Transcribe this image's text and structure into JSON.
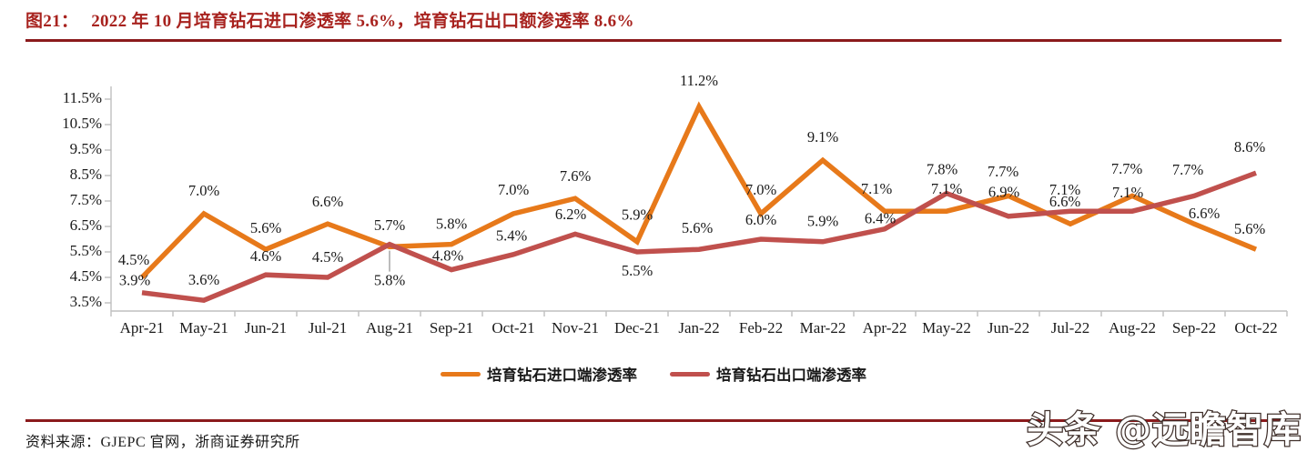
{
  "figure": {
    "label": "图21：",
    "title": "2022 年 10 月培育钻石进口渗透率 5.6%，培育钻石出口额渗透率 8.6%"
  },
  "chart_data": {
    "type": "line",
    "categories": [
      "Apr-21",
      "May-21",
      "Jun-21",
      "Jul-21",
      "Aug-21",
      "Sep-21",
      "Oct-21",
      "Nov-21",
      "Dec-21",
      "Jan-22",
      "Feb-22",
      "Mar-22",
      "Apr-22",
      "May-22",
      "Jun-22",
      "Jul-22",
      "Aug-22",
      "Sep-22",
      "Oct-22"
    ],
    "series": [
      {
        "name": "培育钻石进口端渗透率",
        "color": "#E7791A",
        "values": [
          4.5,
          7.0,
          5.6,
          6.6,
          5.7,
          5.8,
          7.0,
          7.6,
          5.9,
          11.2,
          7.0,
          9.1,
          7.1,
          7.1,
          7.7,
          6.6,
          7.7,
          6.6,
          5.6
        ]
      },
      {
        "name": "培育钻石出口端渗透率",
        "color": "#C0504D",
        "values": [
          3.9,
          3.6,
          4.6,
          4.5,
          5.8,
          4.8,
          5.4,
          6.2,
          5.5,
          5.6,
          6.0,
          5.9,
          6.4,
          7.8,
          6.9,
          7.1,
          7.1,
          7.7,
          8.6
        ]
      }
    ],
    "ylim": [
      3.5,
      11.5
    ],
    "ytick_step": 1.0,
    "ytick_labels": [
      "3.5%",
      "4.5%",
      "5.5%",
      "6.5%",
      "7.5%",
      "8.5%",
      "9.5%",
      "10.5%",
      "11.5%"
    ],
    "grid": false,
    "legend_position": "bottom",
    "data_labels": true,
    "label_format": "{value}%"
  },
  "source": {
    "text": "资料来源：GJEPC 官网，浙商证券研究所"
  },
  "watermark": {
    "text": "头条 @远瞻智库"
  },
  "colors": {
    "title": "#A8231F",
    "rule": "#8B1A1C",
    "axis": "#BFBFBF",
    "label_text": "#1A1A1A",
    "leader": "#A6A6A6"
  }
}
